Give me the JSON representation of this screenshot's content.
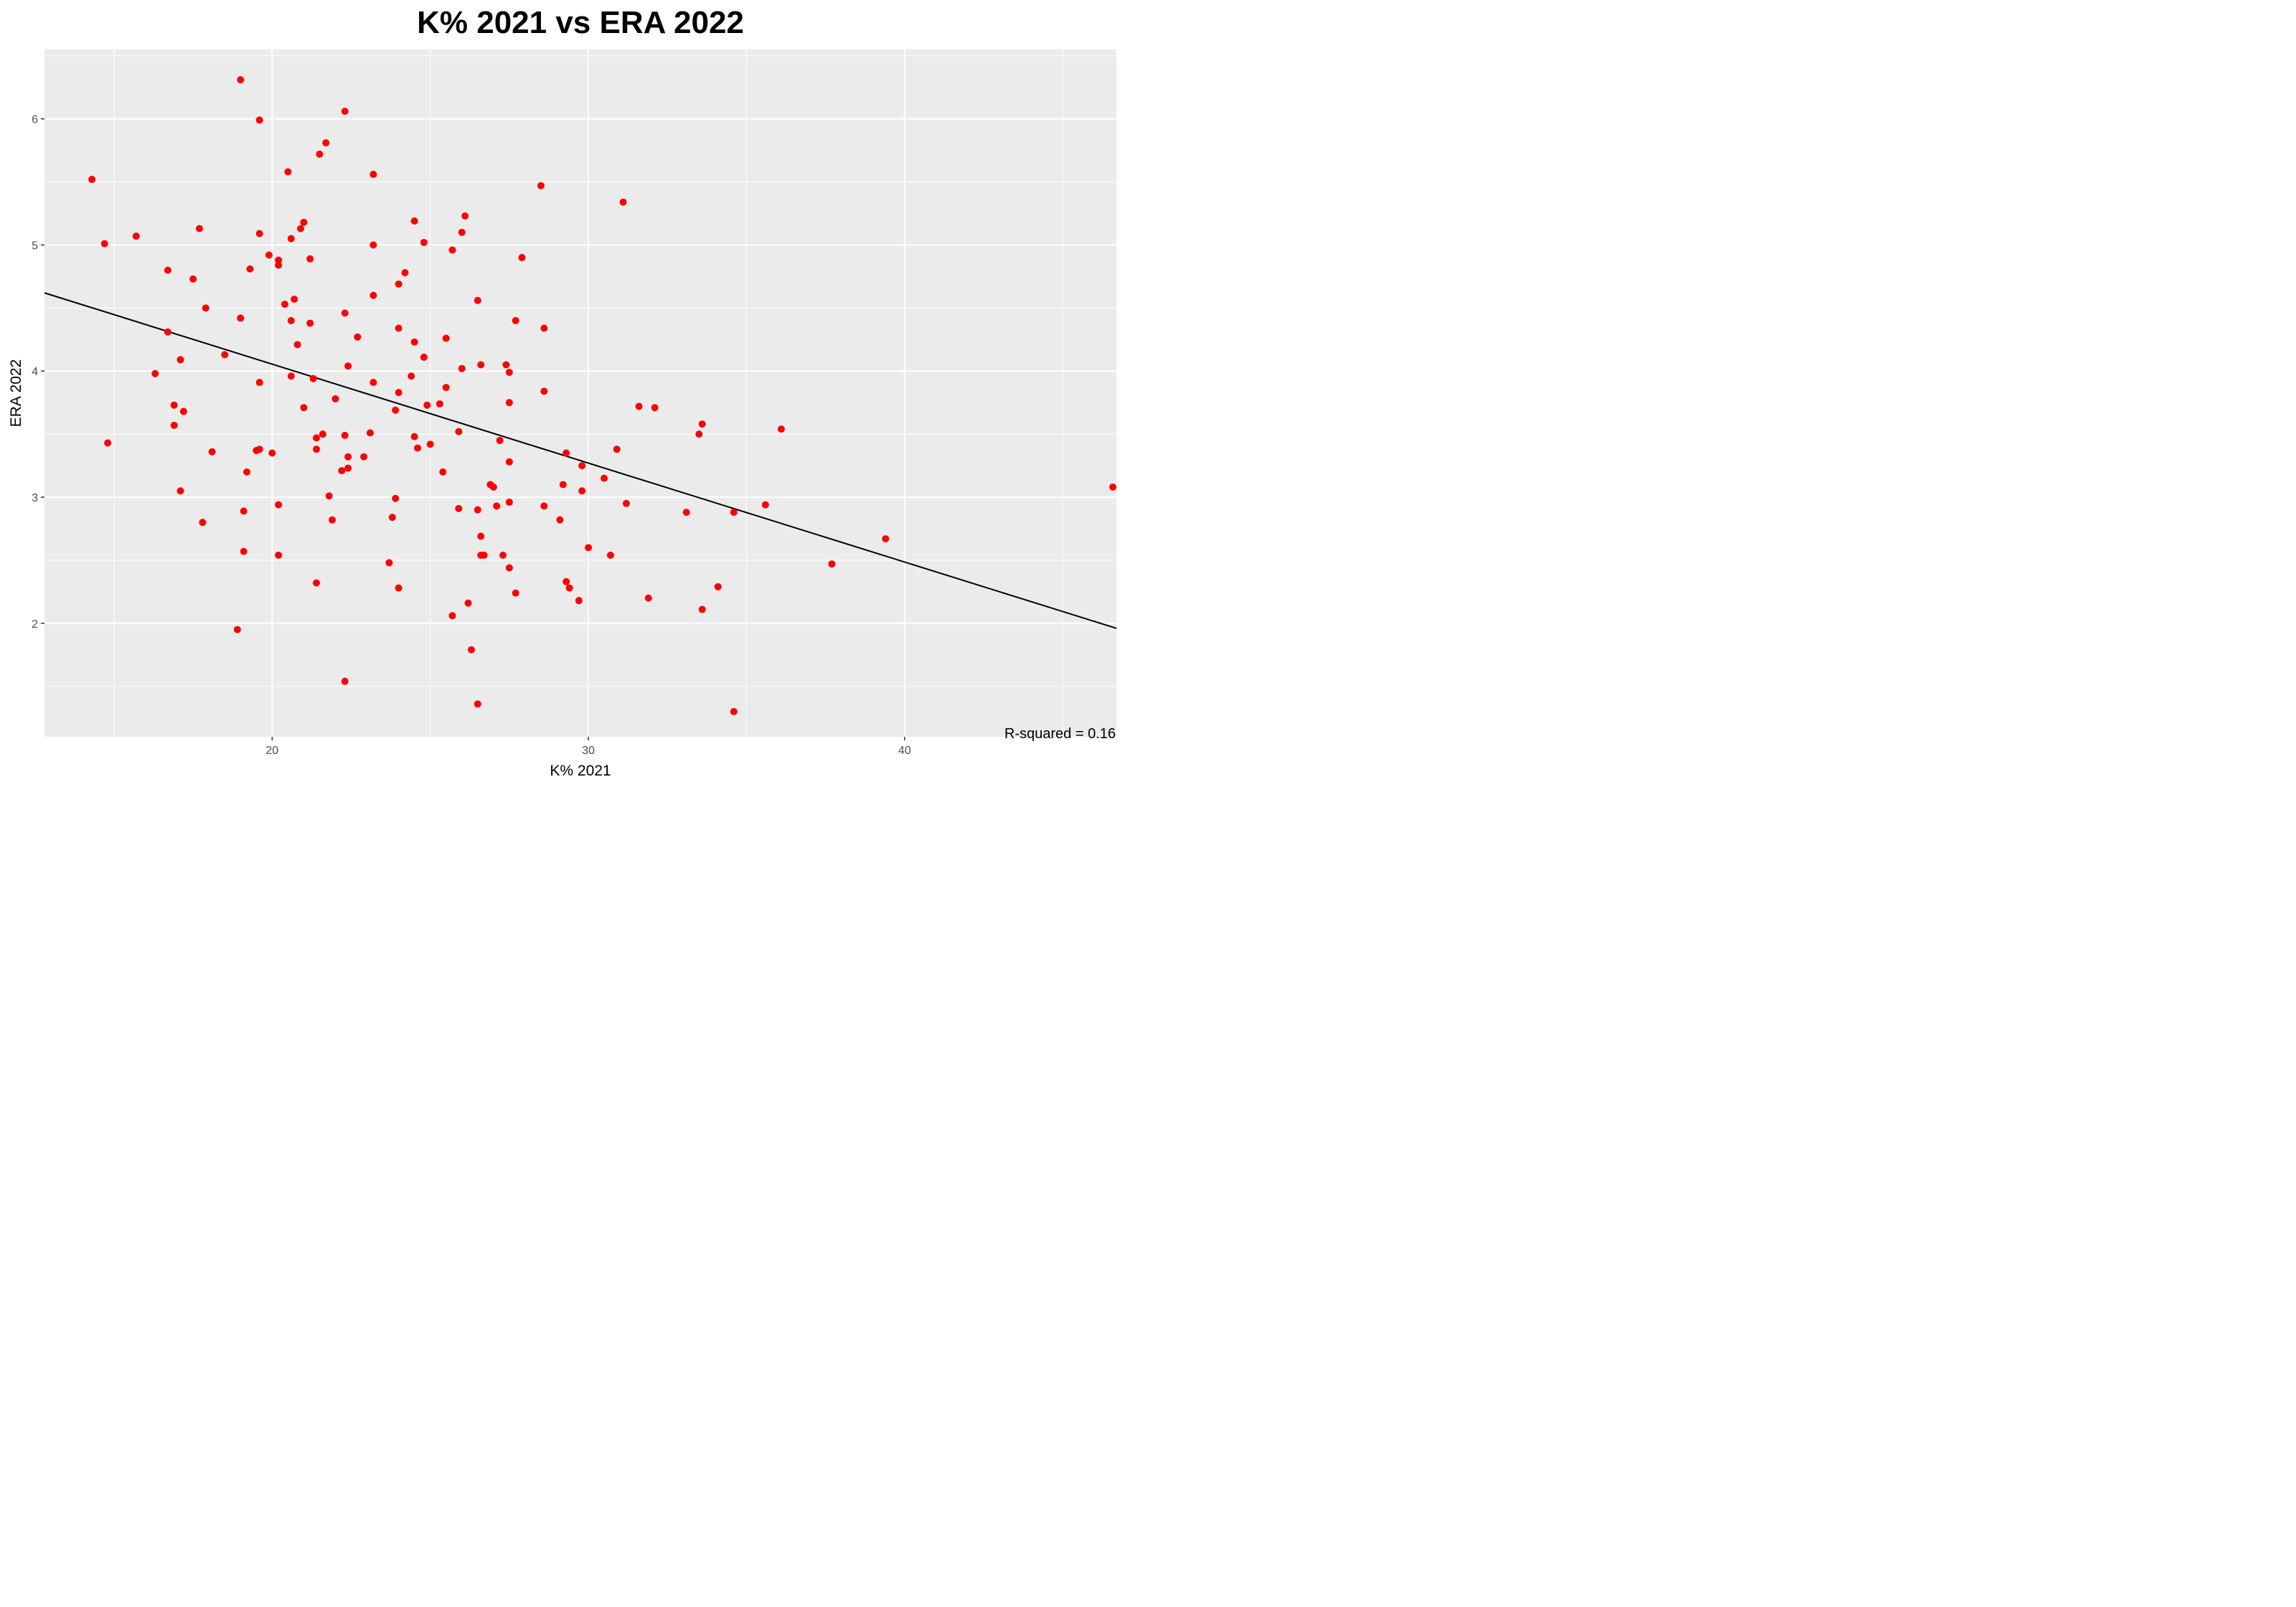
{
  "chart_data": {
    "type": "scatter",
    "title": "K% 2021 vs ERA 2022",
    "xlabel": "K% 2021",
    "ylabel": "ERA 2022",
    "xlim": [
      12.8,
      46.7
    ],
    "ylim": [
      1.1,
      6.55
    ],
    "x_ticks": [
      "20",
      "30",
      "40"
    ],
    "y_ticks": [
      "2",
      "3",
      "4",
      "5",
      "6"
    ],
    "x_tick_values": [
      20,
      30,
      40
    ],
    "y_tick_values": [
      2,
      3,
      4,
      5,
      6
    ],
    "grid": true,
    "point_color": "#ff0000",
    "line_color": "#000000",
    "panel_color": "#ebebeb",
    "grid_color": "#ffffff",
    "regression": {
      "x": [
        12.8,
        46.7
      ],
      "y": [
        4.62,
        1.96
      ]
    },
    "annotation": "R-squared = 0.16",
    "points": [
      [
        14.3,
        5.52
      ],
      [
        14.7,
        5.01
      ],
      [
        14.8,
        3.43
      ],
      [
        15.7,
        5.07
      ],
      [
        16.3,
        3.98
      ],
      [
        16.7,
        4.31
      ],
      [
        16.7,
        4.8
      ],
      [
        16.9,
        3.73
      ],
      [
        16.9,
        3.57
      ],
      [
        17.1,
        4.09
      ],
      [
        17.1,
        3.05
      ],
      [
        17.2,
        3.68
      ],
      [
        17.5,
        4.73
      ],
      [
        17.7,
        5.13
      ],
      [
        17.8,
        2.8
      ],
      [
        17.9,
        4.5
      ],
      [
        18.1,
        3.36
      ],
      [
        18.5,
        4.13
      ],
      [
        18.9,
        1.95
      ],
      [
        19.0,
        4.42
      ],
      [
        19.0,
        6.31
      ],
      [
        19.1,
        2.57
      ],
      [
        19.1,
        2.89
      ],
      [
        19.2,
        3.2
      ],
      [
        19.3,
        4.81
      ],
      [
        19.5,
        3.37
      ],
      [
        19.6,
        3.38
      ],
      [
        19.6,
        5.09
      ],
      [
        19.6,
        5.99
      ],
      [
        19.6,
        3.91
      ],
      [
        19.9,
        4.92
      ],
      [
        20.0,
        3.35
      ],
      [
        20.2,
        4.88
      ],
      [
        20.2,
        4.84
      ],
      [
        20.2,
        2.94
      ],
      [
        20.2,
        2.54
      ],
      [
        20.4,
        4.53
      ],
      [
        20.5,
        5.58
      ],
      [
        20.6,
        4.4
      ],
      [
        20.6,
        3.96
      ],
      [
        20.6,
        5.05
      ],
      [
        20.7,
        4.57
      ],
      [
        20.8,
        4.21
      ],
      [
        20.9,
        5.13
      ],
      [
        21.0,
        5.18
      ],
      [
        21.0,
        3.71
      ],
      [
        21.2,
        4.89
      ],
      [
        21.2,
        4.38
      ],
      [
        21.3,
        3.94
      ],
      [
        21.4,
        3.47
      ],
      [
        21.4,
        3.38
      ],
      [
        21.4,
        2.32
      ],
      [
        21.5,
        5.72
      ],
      [
        21.6,
        3.5
      ],
      [
        21.7,
        5.81
      ],
      [
        21.8,
        3.01
      ],
      [
        21.9,
        2.82
      ],
      [
        22.0,
        3.78
      ],
      [
        22.2,
        3.21
      ],
      [
        22.3,
        6.06
      ],
      [
        22.3,
        4.46
      ],
      [
        22.3,
        3.49
      ],
      [
        22.3,
        1.54
      ],
      [
        22.4,
        4.04
      ],
      [
        22.4,
        3.32
      ],
      [
        22.4,
        3.23
      ],
      [
        22.7,
        4.27
      ],
      [
        22.9,
        3.32
      ],
      [
        23.1,
        3.51
      ],
      [
        23.2,
        5.56
      ],
      [
        23.2,
        5.0
      ],
      [
        23.2,
        4.6
      ],
      [
        23.2,
        3.91
      ],
      [
        23.7,
        2.48
      ],
      [
        23.8,
        2.84
      ],
      [
        23.9,
        3.69
      ],
      [
        23.9,
        2.99
      ],
      [
        24.0,
        4.69
      ],
      [
        24.0,
        4.34
      ],
      [
        24.0,
        3.83
      ],
      [
        24.0,
        2.28
      ],
      [
        24.2,
        4.78
      ],
      [
        24.4,
        3.96
      ],
      [
        24.5,
        5.19
      ],
      [
        24.5,
        4.23
      ],
      [
        24.5,
        3.48
      ],
      [
        24.6,
        3.39
      ],
      [
        24.8,
        5.02
      ],
      [
        24.8,
        4.11
      ],
      [
        24.9,
        3.73
      ],
      [
        25.0,
        3.42
      ],
      [
        25.3,
        3.74
      ],
      [
        25.4,
        3.2
      ],
      [
        25.5,
        4.26
      ],
      [
        25.5,
        3.87
      ],
      [
        25.7,
        4.96
      ],
      [
        25.7,
        2.06
      ],
      [
        25.9,
        3.52
      ],
      [
        25.9,
        2.91
      ],
      [
        26.0,
        5.1
      ],
      [
        26.0,
        4.02
      ],
      [
        26.1,
        5.23
      ],
      [
        26.2,
        2.16
      ],
      [
        26.3,
        1.79
      ],
      [
        26.5,
        4.56
      ],
      [
        26.5,
        2.9
      ],
      [
        26.5,
        1.36
      ],
      [
        26.6,
        4.05
      ],
      [
        26.6,
        2.69
      ],
      [
        26.6,
        2.54
      ],
      [
        26.7,
        2.54
      ],
      [
        26.9,
        3.1
      ],
      [
        27.0,
        3.08
      ],
      [
        27.1,
        2.93
      ],
      [
        27.2,
        3.45
      ],
      [
        27.3,
        2.54
      ],
      [
        27.4,
        4.05
      ],
      [
        27.5,
        3.99
      ],
      [
        27.5,
        3.75
      ],
      [
        27.5,
        3.28
      ],
      [
        27.5,
        2.96
      ],
      [
        27.5,
        2.44
      ],
      [
        27.7,
        4.4
      ],
      [
        27.7,
        2.24
      ],
      [
        27.9,
        4.9
      ],
      [
        28.5,
        5.47
      ],
      [
        28.6,
        4.34
      ],
      [
        28.6,
        3.84
      ],
      [
        28.6,
        2.93
      ],
      [
        29.1,
        2.82
      ],
      [
        29.2,
        3.1
      ],
      [
        29.3,
        3.35
      ],
      [
        29.3,
        2.33
      ],
      [
        29.4,
        2.28
      ],
      [
        29.7,
        2.18
      ],
      [
        29.8,
        3.25
      ],
      [
        29.8,
        3.05
      ],
      [
        30.0,
        2.6
      ],
      [
        30.5,
        3.15
      ],
      [
        30.7,
        2.54
      ],
      [
        30.9,
        3.38
      ],
      [
        31.1,
        5.34
      ],
      [
        31.2,
        2.95
      ],
      [
        31.6,
        3.72
      ],
      [
        31.9,
        2.2
      ],
      [
        32.1,
        3.71
      ],
      [
        33.1,
        2.88
      ],
      [
        33.5,
        3.5
      ],
      [
        33.6,
        3.58
      ],
      [
        33.6,
        2.11
      ],
      [
        34.1,
        2.29
      ],
      [
        34.6,
        2.88
      ],
      [
        34.6,
        1.3
      ],
      [
        35.6,
        2.94
      ],
      [
        36.1,
        3.54
      ],
      [
        37.7,
        2.47
      ],
      [
        39.4,
        2.67
      ],
      [
        46.6,
        3.08
      ]
    ]
  }
}
